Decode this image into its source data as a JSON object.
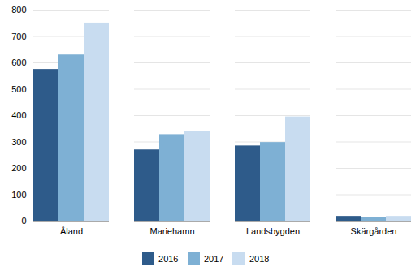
{
  "chart_data": {
    "type": "bar",
    "categories": [
      "Åland",
      "Mariehamn",
      "Landsbygden",
      "Skärgården"
    ],
    "series": [
      {
        "name": "2016",
        "color": "#2E5B8A",
        "values": [
          575,
          270,
          285,
          18
        ]
      },
      {
        "name": "2017",
        "color": "#7EB0D4",
        "values": [
          630,
          328,
          298,
          15
        ]
      },
      {
        "name": "2018",
        "color": "#C8DCF0",
        "values": [
          751,
          340,
          395,
          18
        ]
      }
    ],
    "ylim": [
      0,
      800
    ],
    "yticks": [
      0,
      100,
      200,
      300,
      400,
      500,
      600,
      700,
      800
    ],
    "grid": true,
    "legend": "bottom"
  }
}
